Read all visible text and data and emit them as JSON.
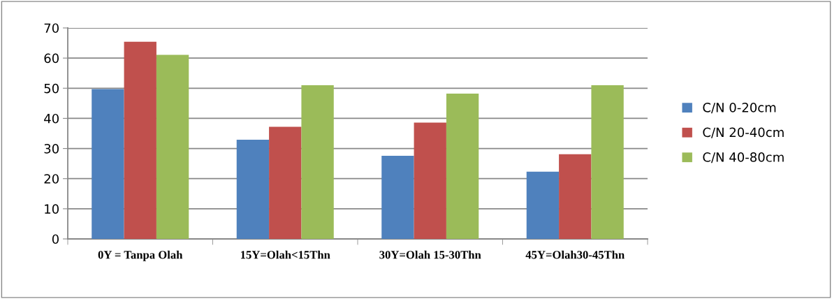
{
  "chart_data": {
    "type": "bar",
    "categories": [
      "0Y = Tanpa Olah",
      "15Y=Olah<15Thn",
      "30Y=Olah 15-30Thn",
      "45Y=Olah30-45Thn"
    ],
    "series": [
      {
        "name": "C/N 0-20cm",
        "color": "#4f81bd",
        "values": [
          49.7,
          32.9,
          27.6,
          22.3
        ]
      },
      {
        "name": "C/N 20-40cm",
        "color": "#c0504d",
        "values": [
          65.4,
          37.2,
          38.6,
          28.1
        ]
      },
      {
        "name": "C/N 40-80cm",
        "color": "#9bbb59",
        "values": [
          61.1,
          51.0,
          48.2,
          51.0
        ]
      }
    ],
    "ylim": [
      0,
      70
    ],
    "yticks": [
      0,
      10,
      20,
      30,
      40,
      50,
      60,
      70
    ],
    "grid": "y",
    "legend": "right"
  }
}
